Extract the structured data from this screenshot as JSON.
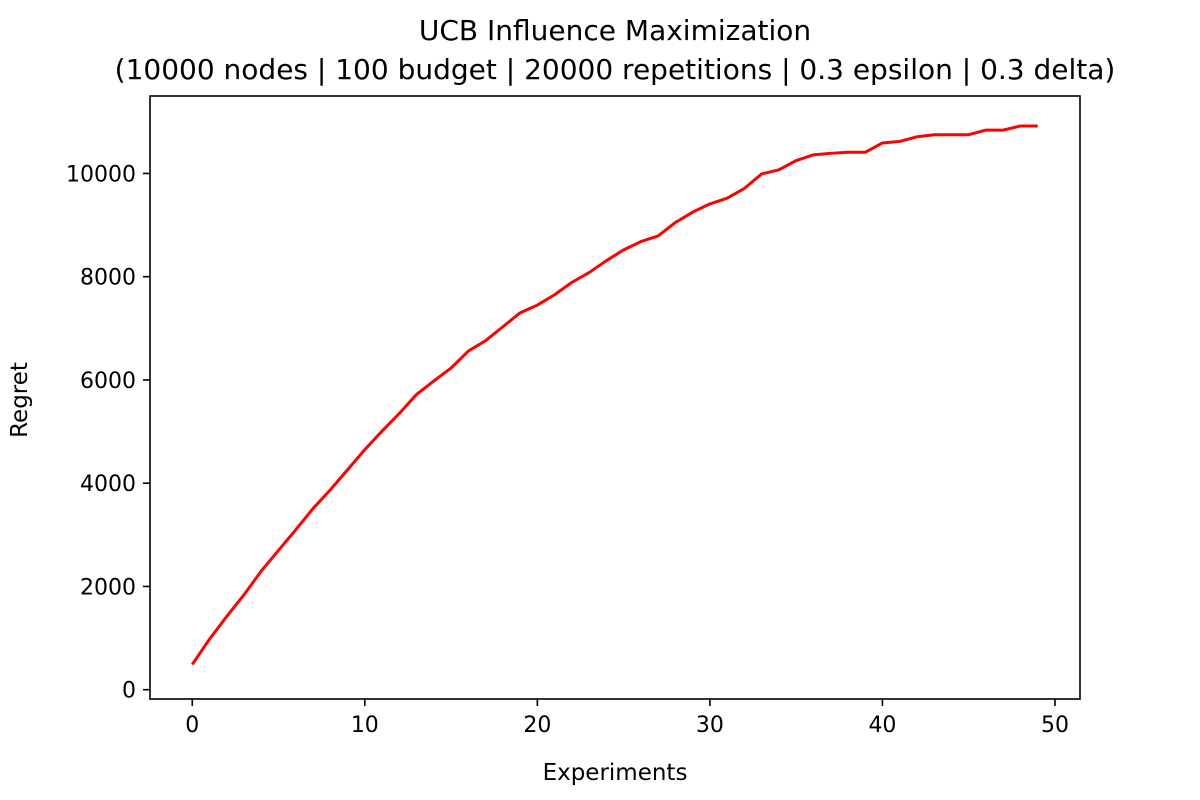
{
  "chart_data": {
    "type": "line",
    "title": "UCB Influence Maximization",
    "subtitle": "(10000 nodes | 100 budget | 20000 repetitions | 0.3 epsilon | 0.3 delta)",
    "xlabel": "Experiments",
    "ylabel": "Regret",
    "xlim": [
      -2.45,
      51.45
    ],
    "ylim": [
      -180,
      11500
    ],
    "xticks": [
      0,
      10,
      20,
      30,
      40,
      50
    ],
    "xtick_labels": [
      "0",
      "10",
      "20",
      "30",
      "40",
      "50"
    ],
    "yticks": [
      0,
      2000,
      4000,
      6000,
      8000,
      10000
    ],
    "ytick_labels": [
      "0",
      "2000",
      "4000",
      "6000",
      "8000",
      "10000"
    ],
    "grid": false,
    "legend": "none",
    "series": [
      {
        "color": "#ff0000",
        "x": [
          0,
          1,
          2,
          3,
          4,
          5,
          6,
          7,
          8,
          9,
          10,
          11,
          12,
          13,
          14,
          15,
          16,
          17,
          18,
          19,
          20,
          21,
          22,
          23,
          24,
          25,
          26,
          27,
          28,
          29,
          30,
          31,
          32,
          33,
          34,
          35,
          36,
          37,
          38,
          39,
          40,
          41,
          42,
          43,
          44,
          45,
          46,
          47,
          48,
          49
        ],
        "y": [
          490,
          980,
          1420,
          1840,
          2300,
          2700,
          3100,
          3510,
          3870,
          4260,
          4650,
          5010,
          5350,
          5720,
          5980,
          6230,
          6560,
          6760,
          7030,
          7300,
          7450,
          7650,
          7890,
          8080,
          8310,
          8520,
          8680,
          8790,
          9050,
          9250,
          9410,
          9520,
          9710,
          9990,
          10070,
          10250,
          10360,
          10390,
          10410,
          10410,
          10590,
          10620,
          10710,
          10750,
          10750,
          10750,
          10840,
          10840,
          10920,
          10920
        ]
      }
    ]
  }
}
